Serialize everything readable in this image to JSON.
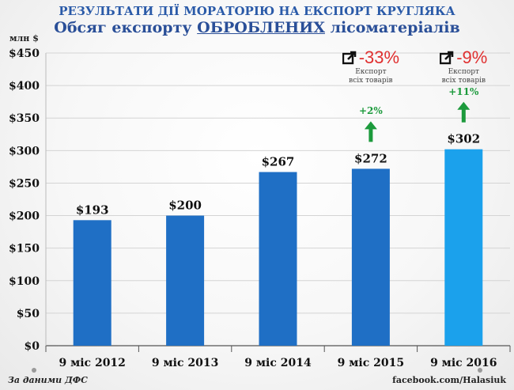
{
  "header": {
    "supertitle": "РЕЗУЛЬТАТИ ДІЇ МОРАТОРІЮ НА ЕКСПОРТ КРУГЛЯКА",
    "title_before": "Обсяг експорту ",
    "title_underlined": "ОБРОБЛЕНИХ",
    "title_after": " лісоматеріалів"
  },
  "unit_label": "млн $",
  "chart_data": {
    "type": "bar",
    "categories": [
      "9 міс 2012",
      "9 міс 2013",
      "9 міс 2014",
      "9 міс 2015",
      "9 міс 2016"
    ],
    "values": [
      193,
      200,
      267,
      272,
      302
    ],
    "value_labels": [
      "$193",
      "$200",
      "$267",
      "$272",
      "$302"
    ],
    "y_ticks": [
      "$0",
      "$50",
      "$100",
      "$150",
      "$200",
      "$250",
      "$300",
      "$350",
      "$400",
      "$450"
    ],
    "ylim": [
      0,
      450
    ],
    "grid": true,
    "bar_colors": [
      "#1f6fc5",
      "#1f6fc5",
      "#1f6fc5",
      "#1f6fc5",
      "#1ba1ec"
    ],
    "annotations": [
      {
        "category": "9 міс 2015",
        "change": "-33%",
        "note_line1": "Експорт",
        "note_line2": "всіх товарів",
        "growth": "+2%"
      },
      {
        "category": "9 міс 2016",
        "change": "-9%",
        "note_line1": "Експорт",
        "note_line2": "всіх товарів",
        "growth": "+11%"
      }
    ]
  },
  "footer": {
    "source": "За даними ДФС",
    "credit": "facebook.com/Halasiuk"
  },
  "colors": {
    "title": "#2a5aa8",
    "negative": "#e03030",
    "positive": "#1c9a3c"
  }
}
